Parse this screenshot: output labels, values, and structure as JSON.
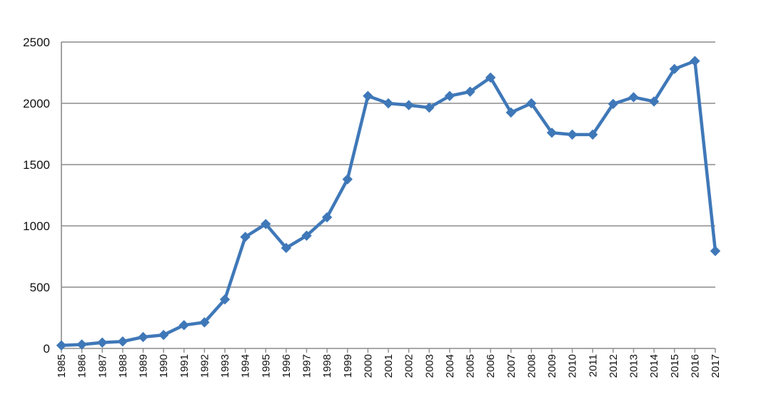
{
  "chart_data": {
    "type": "line",
    "x": [
      "1985",
      "1986",
      "1987",
      "1988",
      "1989",
      "1990",
      "1991",
      "1992",
      "1993",
      "1994",
      "1995",
      "1996",
      "1997",
      "1998",
      "1999",
      "2000",
      "2001",
      "2002",
      "2003",
      "2004",
      "2005",
      "2006",
      "2007",
      "2008",
      "2009",
      "2010",
      "2011",
      "2012",
      "2013",
      "2014",
      "2015",
      "2016",
      "2017"
    ],
    "series": [
      {
        "values": [
          25,
          32,
          48,
          57,
          93,
          110,
          190,
          213,
          400,
          910,
          1015,
          820,
          920,
          1070,
          1380,
          2060,
          2000,
          1985,
          1965,
          2060,
          2095,
          2210,
          1925,
          2000,
          1760,
          1745,
          1745,
          1995,
          2050,
          2015,
          2280,
          2345,
          795
        ]
      }
    ],
    "yticks": [
      "0",
      "500",
      "1000",
      "1500",
      "2000",
      "2500"
    ],
    "ylim": [
      0,
      2500
    ],
    "title": "",
    "xlabel": "",
    "ylabel": "",
    "grid": "horizontal",
    "legend": "none",
    "colors": {
      "line": "#3f78b8",
      "grid": "#8c8c8c",
      "axis": "#8c8c8c"
    }
  }
}
